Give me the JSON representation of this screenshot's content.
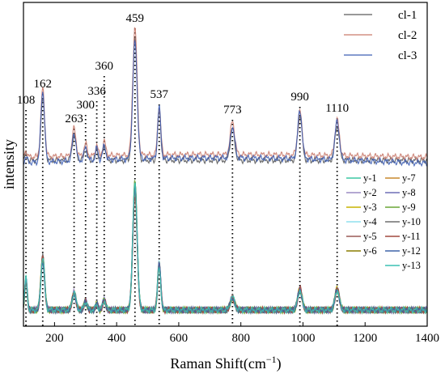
{
  "chart_data": {
    "type": "line",
    "xlabel": "Raman Shift(cm",
    "xlabel_sup": "−1",
    "xlabel_end": ")",
    "ylabel": "intensity",
    "xlim": [
      100,
      1400
    ],
    "x_ticks": [
      200,
      400,
      600,
      800,
      1000,
      1200,
      1400
    ],
    "grid": false,
    "peak_lines": [
      {
        "x": 108,
        "label": "108"
      },
      {
        "x": 162,
        "label": "162"
      },
      {
        "x": 263,
        "label": "263"
      },
      {
        "x": 300,
        "label": "300"
      },
      {
        "x": 336,
        "label": "336"
      },
      {
        "x": 360,
        "label": "360"
      },
      {
        "x": 459,
        "label": "459"
      },
      {
        "x": 537,
        "label": "537"
      },
      {
        "x": 773,
        "label": "773"
      },
      {
        "x": 990,
        "label": "990"
      },
      {
        "x": 1110,
        "label": "1110"
      }
    ],
    "groups": [
      {
        "name": "cl",
        "legend_position": "top-right",
        "series": [
          {
            "name": "cl-1",
            "color": "#5a5a5a"
          },
          {
            "name": "cl-2",
            "color": "#c97a6b"
          },
          {
            "name": "cl-3",
            "color": "#3e5fb5"
          }
        ]
      },
      {
        "name": "y",
        "legend_position": "right",
        "series": [
          {
            "name": "y-1",
            "color": "#3cc7a4"
          },
          {
            "name": "y-2",
            "color": "#9b8bc4"
          },
          {
            "name": "y-3",
            "color": "#c7b300"
          },
          {
            "name": "y-4",
            "color": "#8fe0ee"
          },
          {
            "name": "y-5",
            "color": "#9a5a57"
          },
          {
            "name": "y-6",
            "color": "#8a7d00"
          },
          {
            "name": "y-7",
            "color": "#c9892d"
          },
          {
            "name": "y-8",
            "color": "#6f6fb5"
          },
          {
            "name": "y-9",
            "color": "#6aa536"
          },
          {
            "name": "y-10",
            "color": "#6e6e6e"
          },
          {
            "name": "y-11",
            "color": "#a0483e"
          },
          {
            "name": "y-12",
            "color": "#3f63a8"
          },
          {
            "name": "y-13",
            "color": "#3cc1b4"
          }
        ]
      }
    ],
    "peak_intensity": {
      "cl": {
        "108": 0.05,
        "162": 0.55,
        "263": 0.22,
        "300": 0.1,
        "336": 0.1,
        "360": 0.12,
        "459": 1.0,
        "537": 0.42,
        "773": 0.26,
        "990": 0.38,
        "1110": 0.3
      },
      "y": {
        "108": 0.25,
        "162": 0.43,
        "263": 0.14,
        "300": 0.07,
        "336": 0.05,
        "360": 0.08,
        "459": 1.0,
        "537": 0.38,
        "773": 0.1,
        "990": 0.17,
        "1110": 0.17
      }
    }
  }
}
